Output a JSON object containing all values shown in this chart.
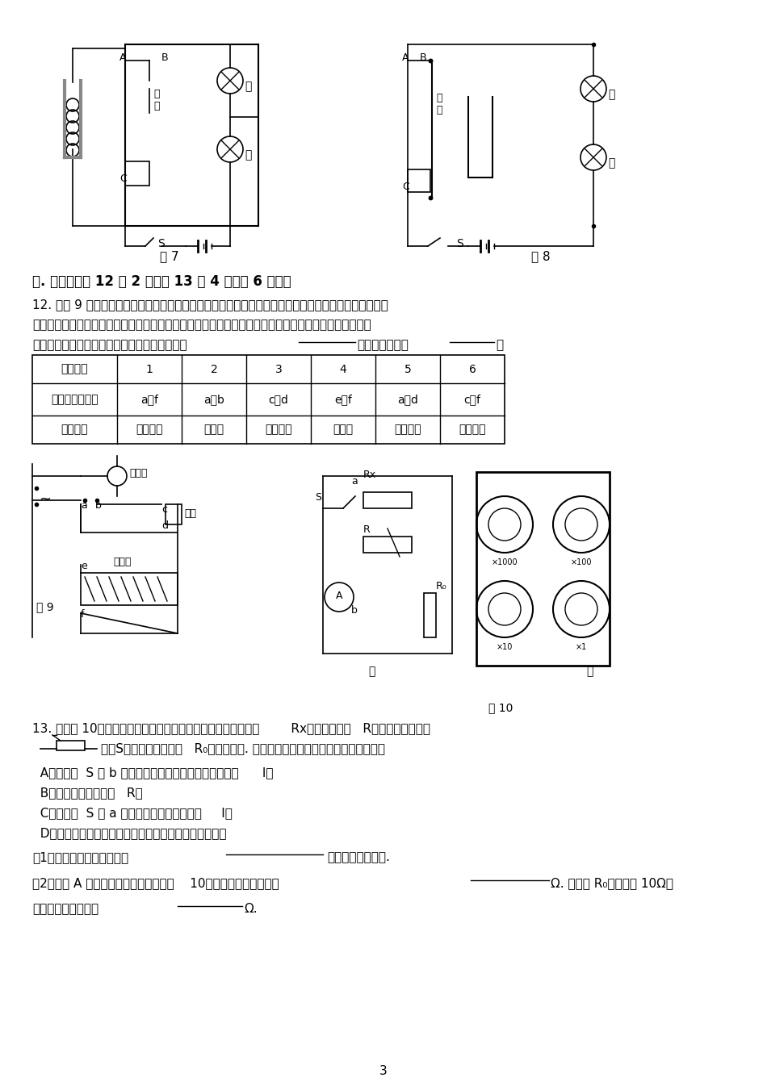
{
  "page_number": "3",
  "background_color": "#ffffff",
  "text_color": "#000000",
  "section4_title": "四. 实验题（第 12 题 2 分，第 13 题 4 分，共 6 分。）",
  "q12_text_line1": "12. 如图 9 所示是一个电热器电路。电热丝、指示灯、开关构成串联电路，接在电源上，已知该电路中有",
  "q12_text_line2": "一个元件断路，有一个元件短路，但不知道是哪两个元件有故障。今用一个校验电灯分别接在电路各处，",
  "q12_text_line3": "得到下表所示的结果。由此可判断断路的元件是",
  "q12_text_line3b": "，短路的元件是",
  "q12_text_line3c": "。",
  "table_header": [
    "校验次数",
    "1",
    "2",
    "3",
    "4",
    "5",
    "6"
  ],
  "table_row1_label": "校验电灯接入点",
  "table_row1_data": [
    "a、f",
    "a、b",
    "c、d",
    "e、f",
    "a、d",
    "c、f"
  ],
  "table_row2_label": "发光情况",
  "table_row2_data": [
    "正常发光",
    "不发光",
    "亮度较暗",
    "不发光",
    "亮度较暗",
    "正常发光"
  ],
  "fig7_label": "图 7",
  "fig8_label": "图 8",
  "fig9_label": "图 9",
  "fig10_label": "图 10",
  "q13_line1": "13. 用如图 10甲所示的电路可以测量一个未知电阻的阻值，其中        Rx为待测电阻，   R为电阻箱（符号为",
  "q13_line2": "      ），S为单刀双掷开关，   R₀为定值电阻. 某同学用该电路进行实验，主要步骤有：",
  "q13_A": "  A．把开关  S 接 b 点，调节电阻箱，使电流表的示数为      I；",
  "q13_B": "  B．读出电阻箱的示数   R；",
  "q13_C": "  C．把开关  S 接 a 点，读出电流表的示数为     I；",
  "q13_D": "  D．根据电路图，连接实物，将电阻箱的阻值调至最大。",
  "q13_sub1": "（1）上述步骤的合理顺序是              （只需填写序号）.",
  "q13_sub2": "（2）步骤 A 中电阻箱调节好后示数如图    10乙所示，则它的示数为              Ω. 若已知 R₀的阻值为 10Ω，",
  "q13_sub3": "则待测电阻的阻值为        Ω."
}
